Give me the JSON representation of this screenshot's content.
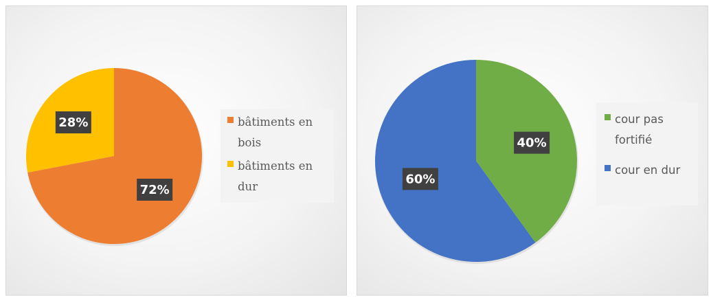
{
  "chart_data": [
    {
      "type": "pie",
      "title": "",
      "categories": [
        "bâtiments en bois",
        "bâtiments en dur"
      ],
      "values": [
        72,
        28
      ],
      "data_labels": [
        "72%",
        "28%"
      ],
      "colors": [
        "#ED7D31",
        "#FFC000"
      ],
      "start_angle_deg": 0,
      "direction": "clockwise",
      "legend": {
        "placement": "right",
        "items": [
          {
            "lines": [
              "bâtiments en",
              "bois"
            ],
            "color": "#ED7D31"
          },
          {
            "lines": [
              "bâtiments en",
              "dur"
            ],
            "color": "#FFC000"
          }
        ]
      }
    },
    {
      "type": "pie",
      "title": "",
      "categories": [
        "cour pas fortifié",
        "cour en dur"
      ],
      "values": [
        40,
        60
      ],
      "data_labels": [
        "40%",
        "60%"
      ],
      "colors": [
        "#70AD47",
        "#4472C4"
      ],
      "start_angle_deg": 0,
      "direction": "clockwise",
      "legend": {
        "placement": "right",
        "items": [
          {
            "lines": [
              "cour pas",
              "fortifié"
            ],
            "color": "#70AD47"
          },
          {
            "lines": [
              "cour en dur"
            ],
            "color": "#4472C4"
          }
        ]
      }
    }
  ]
}
